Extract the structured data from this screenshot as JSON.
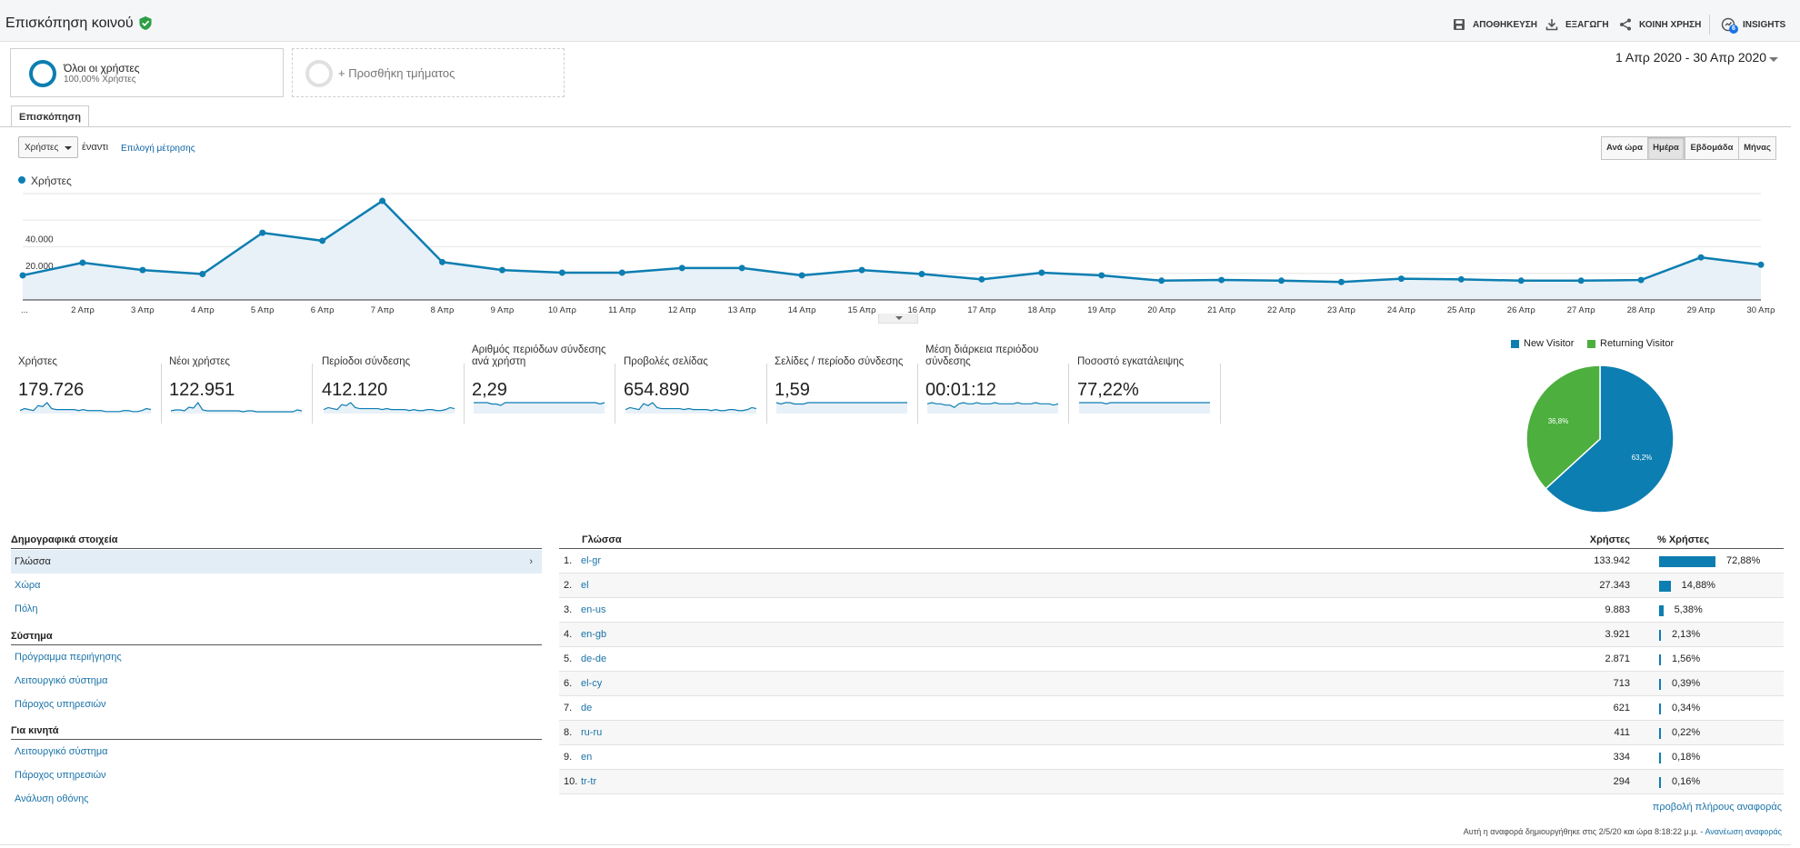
{
  "header": {
    "title": "Επισκόπηση κοινού",
    "actions": [
      {
        "label": "ΑΠΟΘΗΚΕΥΣΗ",
        "icon": "save-icon"
      },
      {
        "label": "ΕΞΑΓΩΓΗ",
        "icon": "download-icon"
      },
      {
        "label": "ΚΟΙΝΗ ΧΡΗΣΗ",
        "icon": "share-icon"
      },
      {
        "label": "INSIGHTS",
        "icon": "insights-icon",
        "badge": "6"
      }
    ]
  },
  "segments": {
    "all_users_name": "Όλοι οι χρήστες",
    "all_users_sub": "100,00% Χρήστες",
    "add_segment": "+ Προσθήκη τμήματος"
  },
  "date_range": "1 Απρ 2020 - 30 Απρ 2020",
  "tabs": [
    "Επισκόπηση"
  ],
  "controls": {
    "metric_select": "Χρήστες",
    "vs_label": "έναντι",
    "pick_metric": "Επιλογή μέτρησης",
    "granularity": [
      "Ανά ώρα",
      "Ημέρα",
      "Εβδομάδα",
      "Μήνας"
    ],
    "active_granularity": "Ημέρα"
  },
  "chart_data": [
    {
      "type": "area",
      "series": [
        {
          "name": "Χρήστες",
          "values": [
            18500,
            28000,
            22500,
            19500,
            50500,
            44500,
            74500,
            28500,
            22500,
            20500,
            20500,
            24000,
            24000,
            18500,
            22500,
            19500,
            15500,
            20500,
            18500,
            14500,
            15000,
            14500,
            13500,
            16000,
            15500,
            14500,
            14500,
            15000,
            32000,
            26500
          ]
        }
      ],
      "x": [
        "...",
        "2 Απρ",
        "3 Απρ",
        "4 Απρ",
        "5 Απρ",
        "6 Απρ",
        "7 Απρ",
        "8 Απρ",
        "9 Απρ",
        "10 Απρ",
        "11 Απρ",
        "12 Απρ",
        "13 Απρ",
        "14 Απρ",
        "15 Απρ",
        "16 Απρ",
        "17 Απρ",
        "18 Απρ",
        "19 Απρ",
        "20 Απρ",
        "21 Απρ",
        "22 Απρ",
        "23 Απρ",
        "24 Απρ",
        "25 Απρ",
        "26 Απρ",
        "27 Απρ",
        "28 Απρ",
        "29 Απρ",
        "30 Απρ"
      ],
      "y_ticks": [
        "40.000",
        "20.000"
      ],
      "ylim": [
        0,
        80000
      ],
      "color": "#0d7eb1",
      "legend": "top-left",
      "grid": true
    },
    {
      "type": "pie",
      "slices": [
        {
          "name": "New Visitor",
          "value": 63.2,
          "label": "63,2%",
          "color": "#0d7eb1"
        },
        {
          "name": "Returning Visitor",
          "value": 36.8,
          "label": "36,8%",
          "color": "#4caf3e"
        }
      ],
      "legend": "top"
    }
  ],
  "kpis": [
    {
      "label": "Χρήστες",
      "value": "179.726",
      "spark": [
        3,
        5,
        4,
        3,
        8,
        7,
        11,
        5,
        4,
        4,
        4,
        4,
        4,
        3,
        4,
        3,
        3,
        3,
        3,
        2,
        2,
        2,
        2,
        3,
        3,
        2,
        2,
        3,
        5,
        4
      ]
    },
    {
      "label": "Νέοι χρήστες",
      "value": "122.951",
      "spark": [
        3,
        4,
        4,
        3,
        7,
        6,
        12,
        4,
        3,
        3,
        3,
        3,
        3,
        3,
        3,
        3,
        2,
        3,
        3,
        2,
        2,
        2,
        2,
        2,
        2,
        2,
        2,
        2,
        4,
        3
      ]
    },
    {
      "label": "Περίοδοι σύνδεσης",
      "value": "412.120",
      "spark": [
        4,
        6,
        5,
        4,
        9,
        8,
        11,
        6,
        5,
        5,
        5,
        5,
        5,
        4,
        5,
        4,
        4,
        4,
        4,
        3,
        4,
        3,
        3,
        4,
        4,
        3,
        3,
        4,
        6,
        5
      ]
    },
    {
      "label": "Αριθμός περιόδων σύνδεσης ανά χρήστη",
      "value": "2,29",
      "spark": [
        8,
        8,
        8,
        8,
        7,
        7,
        6,
        8,
        8,
        8,
        8,
        8,
        8,
        8,
        8,
        8,
        8,
        8,
        8,
        8,
        8,
        8,
        8,
        8,
        8,
        8,
        8,
        8,
        7,
        8
      ]
    },
    {
      "label": "Προβολές σελίδας",
      "value": "654.890",
      "spark": [
        4,
        6,
        5,
        4,
        10,
        8,
        11,
        6,
        5,
        5,
        5,
        5,
        5,
        4,
        5,
        4,
        4,
        4,
        4,
        3,
        4,
        3,
        3,
        4,
        4,
        3,
        3,
        4,
        6,
        5
      ]
    },
    {
      "label": "Σελίδες / περίοδο σύνδεσης",
      "value": "1,59",
      "spark": [
        8,
        7,
        8,
        8,
        7,
        7,
        7,
        8,
        8,
        8,
        8,
        8,
        8,
        8,
        8,
        8,
        8,
        8,
        8,
        8,
        8,
        8,
        8,
        8,
        8,
        8,
        8,
        8,
        8,
        8
      ]
    },
    {
      "label": "Μέση διάρκεια περιόδου σύνδεσης",
      "value": "00:01:12",
      "spark": [
        8,
        9,
        8,
        8,
        7,
        7,
        5,
        8,
        9,
        8,
        8,
        9,
        8,
        8,
        8,
        9,
        8,
        8,
        8,
        8,
        9,
        8,
        8,
        8,
        9,
        8,
        8,
        8,
        7,
        8
      ]
    },
    {
      "label": "Ποσοστό εγκατάλειψης",
      "value": "77,22%",
      "spark": [
        9,
        9,
        9,
        9,
        9,
        9,
        8,
        9,
        9,
        9,
        9,
        9,
        9,
        9,
        9,
        9,
        9,
        9,
        9,
        9,
        9,
        9,
        9,
        9,
        9,
        9,
        9,
        9,
        9,
        9
      ]
    }
  ],
  "left_panel": {
    "sections": [
      {
        "heading": "Δημογραφικά στοιχεία",
        "items": [
          "Γλώσσα",
          "Χώρα",
          "Πόλη"
        ]
      },
      {
        "heading": "Σύστημα",
        "items": [
          "Πρόγραμμα περιήγησης",
          "Λειτουργικό σύστημα",
          "Πάροχος υπηρεσιών"
        ]
      },
      {
        "heading": "Για κινητά",
        "items": [
          "Λειτουργικό σύστημα",
          "Πάροχος υπηρεσιών",
          "Ανάλυση οθόνης"
        ]
      }
    ],
    "selected_arrow": "›"
  },
  "table": {
    "headers": {
      "dimension": "Γλώσσα",
      "users": "Χρήστες",
      "pct": "% Χρήστες"
    },
    "rows": [
      {
        "rank": "1.",
        "lang": "el-gr",
        "users": "133.942",
        "pct": "72,88%",
        "share": 72.88
      },
      {
        "rank": "2.",
        "lang": "el",
        "users": "27.343",
        "pct": "14,88%",
        "share": 14.88
      },
      {
        "rank": "3.",
        "lang": "en-us",
        "users": "9.883",
        "pct": "5,38%",
        "share": 5.38
      },
      {
        "rank": "4.",
        "lang": "en-gb",
        "users": "3.921",
        "pct": "2,13%",
        "share": 2.13
      },
      {
        "rank": "5.",
        "lang": "de-de",
        "users": "2.871",
        "pct": "1,56%",
        "share": 1.56
      },
      {
        "rank": "6.",
        "lang": "el-cy",
        "users": "713",
        "pct": "0,39%",
        "share": 0.39
      },
      {
        "rank": "7.",
        "lang": "de",
        "users": "621",
        "pct": "0,34%",
        "share": 0.34
      },
      {
        "rank": "8.",
        "lang": "ru-ru",
        "users": "411",
        "pct": "0,22%",
        "share": 0.22
      },
      {
        "rank": "9.",
        "lang": "en",
        "users": "334",
        "pct": "0,18%",
        "share": 0.18
      },
      {
        "rank": "10.",
        "lang": "tr-tr",
        "users": "294",
        "pct": "0,16%",
        "share": 0.16
      }
    ],
    "full_report": "προβολή πλήρους αναφοράς"
  },
  "footer": {
    "note": "Αυτή η αναφορά δημιουργήθηκε στις 2/5/20 και ώρα 8:18:22 μ.μ. - ",
    "refresh": "Ανανέωση αναφοράς"
  }
}
